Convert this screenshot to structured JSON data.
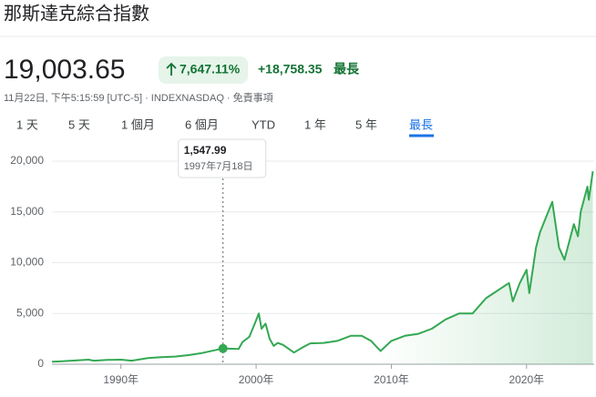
{
  "header": {
    "title": "那斯達克綜合指數",
    "price": "19,003.65",
    "change_percent": "7,647.11%",
    "change": "+18,758.35",
    "period": "最長",
    "meta": "11月22日, 下午5:15:59 [UTC-5] · INDEXNASDAQ · 免責事項"
  },
  "tabs": [
    "1 天",
    "5 天",
    "1 個月",
    "6 個月",
    "YTD",
    "1 年",
    "5 年",
    "最長"
  ],
  "chart_data": {
    "type": "line",
    "color": "#34a853",
    "grid": true,
    "x": [
      1984.9,
      1985.5,
      1986.5,
      1987.6,
      1988,
      1989,
      1990,
      1990.8,
      1992,
      1993,
      1994,
      1995,
      1996,
      1997.55,
      1998.7,
      1999,
      1999.5,
      1999.9,
      2000.2,
      2000.4,
      2000.7,
      2001,
      2001.3,
      2001.6,
      2002,
      2002.8,
      2003.5,
      2004,
      2005,
      2006,
      2007,
      2007.8,
      2008.5,
      2009.2,
      2010,
      2011,
      2012,
      2013,
      2014,
      2015,
      2016,
      2017,
      2018.7,
      2018.98,
      2019.5,
      2020,
      2020.2,
      2020.7,
      2021,
      2021.9,
      2022.4,
      2022.8,
      2023.5,
      2023.8,
      2024,
      2024.5,
      2024.6,
      2024.9
    ],
    "values": [
      250,
      280,
      360,
      450,
      350,
      420,
      450,
      350,
      600,
      700,
      750,
      900,
      1100,
      1547.99,
      1500,
      2200,
      2700,
      4000,
      5000,
      3500,
      4000,
      2500,
      1800,
      2100,
      1900,
      1150,
      1700,
      2050,
      2100,
      2300,
      2800,
      2800,
      2300,
      1300,
      2300,
      2800,
      3000,
      3500,
      4400,
      5000,
      5000,
      6500,
      8000,
      6200,
      8000,
      9300,
      7000,
      11500,
      13000,
      16000,
      11500,
      10300,
      13800,
      12600,
      15000,
      17500,
      16200,
      19003.65
    ],
    "xlim": [
      1984.9,
      2025.0
    ],
    "ylim": [
      0,
      20000
    ],
    "xticks": [
      {
        "value": 1990,
        "label": "1990年"
      },
      {
        "value": 2000,
        "label": "2000年"
      },
      {
        "value": 2010,
        "label": "2010年"
      },
      {
        "value": 2020,
        "label": "2020年"
      }
    ],
    "yticks": [
      0,
      {
        "value": 5000,
        "label": "5,000"
      },
      {
        "value": 10000,
        "label": "10,000"
      },
      {
        "value": 15000,
        "label": "15,000"
      },
      {
        "value": 20000,
        "label": "20,000"
      }
    ],
    "tooltip": {
      "x": 1997.55,
      "value": 1547.99,
      "value_label": "1,547.99",
      "date": "1997年7月18日"
    }
  }
}
